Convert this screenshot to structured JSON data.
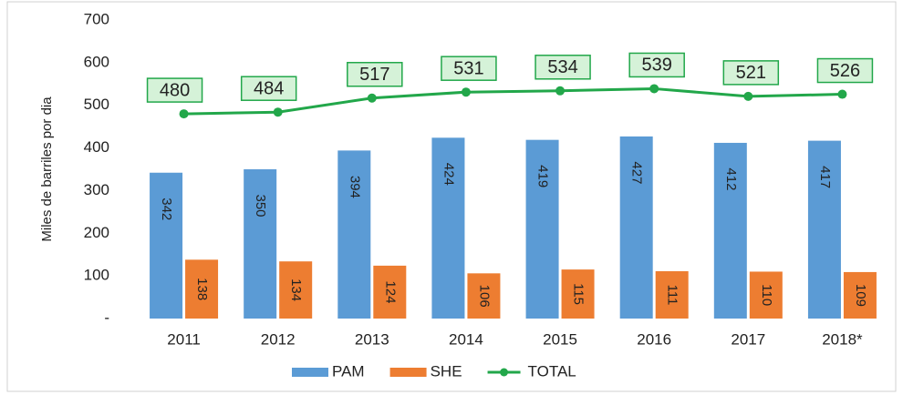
{
  "chart_data": {
    "type": "bar",
    "y_label": "Miles de barriles por dia",
    "categories": [
      "2011",
      "2012",
      "2013",
      "2014",
      "2015",
      "2016",
      "2017",
      "2018*"
    ],
    "series": [
      {
        "name": "PAM",
        "color": "#5b9bd5",
        "type": "bar",
        "values": [
          342,
          350,
          394,
          424,
          419,
          427,
          412,
          417
        ]
      },
      {
        "name": "SHE",
        "color": "#ed7d31",
        "type": "bar",
        "values": [
          138,
          134,
          124,
          106,
          115,
          111,
          110,
          109
        ]
      },
      {
        "name": "TOTAL",
        "color": "#22a74a",
        "type": "line",
        "values": [
          480,
          484,
          517,
          531,
          534,
          539,
          521,
          526
        ]
      }
    ],
    "ylim": [
      0,
      700
    ],
    "yticks": [
      {
        "value": 0,
        "label": "-"
      },
      100,
      200,
      300,
      400,
      500,
      600,
      700
    ],
    "legend": "bottom"
  }
}
